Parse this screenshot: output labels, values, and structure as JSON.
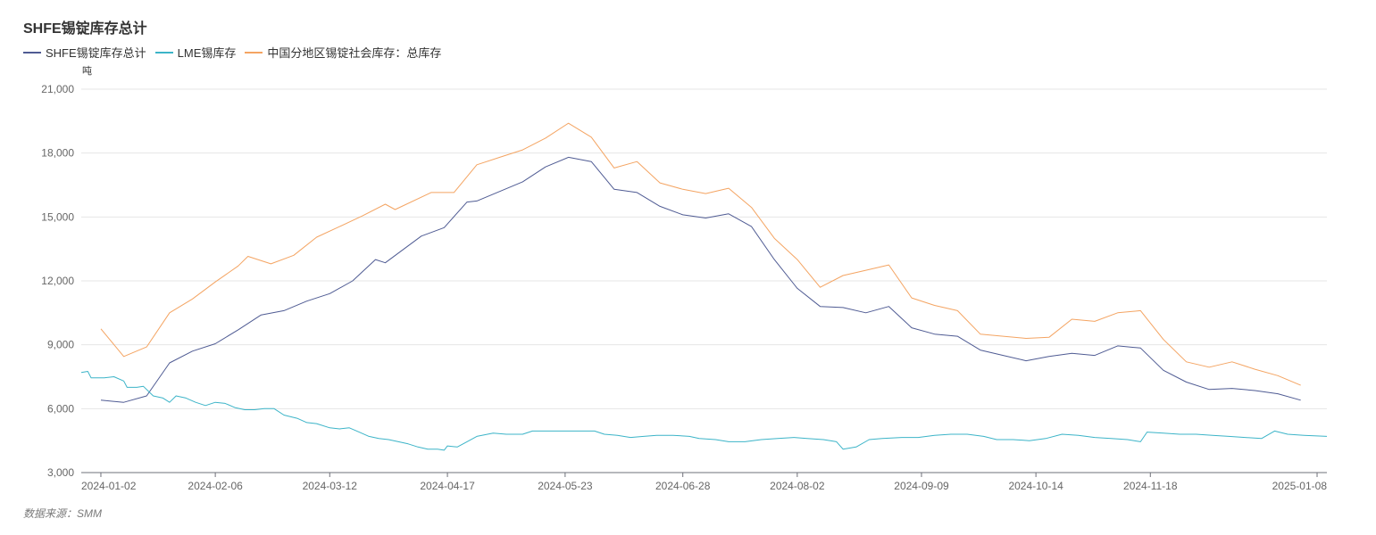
{
  "chart_data": {
    "type": "line",
    "title": "SHFE锡锭库存总计",
    "ylabel": "吨",
    "ylim": [
      3000,
      21000
    ],
    "yticks": [
      3000,
      6000,
      9000,
      12000,
      15000,
      18000,
      21000
    ],
    "ytick_labels": [
      "3,000",
      "6,000",
      "9,000",
      "12,000",
      "15,000",
      "18,000",
      "21,000"
    ],
    "xrange": [
      "2023-12-27",
      "2025-01-11"
    ],
    "xticks": [
      "2024-01-02",
      "2024-02-06",
      "2024-03-12",
      "2024-04-17",
      "2024-05-23",
      "2024-06-28",
      "2024-08-02",
      "2024-09-09",
      "2024-10-14",
      "2024-11-18",
      "2025-01-08"
    ],
    "grid": true,
    "legend_position": "top-left",
    "series": [
      {
        "name": "SHFE锡锭库存总计",
        "color": "#4f5b93",
        "points": [
          [
            "2024-01-02",
            6400
          ],
          [
            "2024-01-09",
            6300
          ],
          [
            "2024-01-16",
            6600
          ],
          [
            "2024-01-23",
            8150
          ],
          [
            "2024-01-30",
            8700
          ],
          [
            "2024-02-06",
            9050
          ],
          [
            "2024-02-13",
            9700
          ],
          [
            "2024-02-20",
            10400
          ],
          [
            "2024-02-27",
            10600
          ],
          [
            "2024-03-05",
            11050
          ],
          [
            "2024-03-12",
            11400
          ],
          [
            "2024-03-19",
            12000
          ],
          [
            "2024-03-26",
            13000
          ],
          [
            "2024-03-29",
            12850
          ],
          [
            "2024-04-09",
            14100
          ],
          [
            "2024-04-16",
            14500
          ],
          [
            "2024-04-23",
            15700
          ],
          [
            "2024-04-26",
            15750
          ],
          [
            "2024-05-10",
            16650
          ],
          [
            "2024-05-17",
            17350
          ],
          [
            "2024-05-24",
            17800
          ],
          [
            "2024-05-31",
            17600
          ],
          [
            "2024-06-07",
            16300
          ],
          [
            "2024-06-14",
            16150
          ],
          [
            "2024-06-21",
            15500
          ],
          [
            "2024-06-28",
            15100
          ],
          [
            "2024-07-05",
            14950
          ],
          [
            "2024-07-12",
            15150
          ],
          [
            "2024-07-19",
            14550
          ],
          [
            "2024-07-26",
            13000
          ],
          [
            "2024-08-02",
            11650
          ],
          [
            "2024-08-09",
            10800
          ],
          [
            "2024-08-16",
            10750
          ],
          [
            "2024-08-23",
            10500
          ],
          [
            "2024-08-30",
            10800
          ],
          [
            "2024-09-06",
            9800
          ],
          [
            "2024-09-13",
            9500
          ],
          [
            "2024-09-20",
            9400
          ],
          [
            "2024-09-27",
            8750
          ],
          [
            "2024-10-04",
            8500
          ],
          [
            "2024-10-11",
            8250
          ],
          [
            "2024-10-18",
            8450
          ],
          [
            "2024-10-25",
            8600
          ],
          [
            "2024-11-01",
            8500
          ],
          [
            "2024-11-08",
            8950
          ],
          [
            "2024-11-15",
            8850
          ],
          [
            "2024-11-22",
            7800
          ],
          [
            "2024-11-29",
            7250
          ],
          [
            "2024-12-06",
            6900
          ],
          [
            "2024-12-13",
            6950
          ],
          [
            "2024-12-20",
            6850
          ],
          [
            "2024-12-27",
            6700
          ],
          [
            "2025-01-03",
            6400
          ]
        ]
      },
      {
        "name": "LME锡库存",
        "color": "#3cb4c8",
        "points": [
          [
            "2023-12-27",
            7700
          ],
          [
            "2023-12-29",
            7750
          ],
          [
            "2023-12-30",
            7450
          ],
          [
            "2024-01-03",
            7450
          ],
          [
            "2024-01-06",
            7500
          ],
          [
            "2024-01-09",
            7300
          ],
          [
            "2024-01-10",
            7000
          ],
          [
            "2024-01-13",
            7000
          ],
          [
            "2024-01-15",
            7050
          ],
          [
            "2024-01-18",
            6600
          ],
          [
            "2024-01-21",
            6500
          ],
          [
            "2024-01-23",
            6300
          ],
          [
            "2024-01-25",
            6600
          ],
          [
            "2024-01-28",
            6500
          ],
          [
            "2024-01-31",
            6300
          ],
          [
            "2024-02-03",
            6150
          ],
          [
            "2024-02-06",
            6300
          ],
          [
            "2024-02-09",
            6250
          ],
          [
            "2024-02-12",
            6050
          ],
          [
            "2024-02-15",
            5950
          ],
          [
            "2024-02-18",
            5950
          ],
          [
            "2024-02-21",
            6000
          ],
          [
            "2024-02-24",
            6000
          ],
          [
            "2024-02-27",
            5700
          ],
          [
            "2024-03-02",
            5550
          ],
          [
            "2024-03-05",
            5350
          ],
          [
            "2024-03-08",
            5300
          ],
          [
            "2024-03-12",
            5100
          ],
          [
            "2024-03-15",
            5050
          ],
          [
            "2024-03-18",
            5100
          ],
          [
            "2024-03-21",
            4900
          ],
          [
            "2024-03-24",
            4700
          ],
          [
            "2024-03-27",
            4600
          ],
          [
            "2024-03-30",
            4550
          ],
          [
            "2024-04-02",
            4450
          ],
          [
            "2024-04-05",
            4350
          ],
          [
            "2024-04-08",
            4200
          ],
          [
            "2024-04-11",
            4100
          ],
          [
            "2024-04-14",
            4100
          ],
          [
            "2024-04-16",
            4050
          ],
          [
            "2024-04-17",
            4250
          ],
          [
            "2024-04-20",
            4200
          ],
          [
            "2024-04-23",
            4450
          ],
          [
            "2024-04-26",
            4700
          ],
          [
            "2024-05-01",
            4850
          ],
          [
            "2024-05-05",
            4800
          ],
          [
            "2024-05-10",
            4800
          ],
          [
            "2024-05-13",
            4950
          ],
          [
            "2024-05-18",
            4950
          ],
          [
            "2024-05-25",
            4950
          ],
          [
            "2024-06-01",
            4950
          ],
          [
            "2024-06-04",
            4800
          ],
          [
            "2024-06-08",
            4750
          ],
          [
            "2024-06-12",
            4650
          ],
          [
            "2024-06-16",
            4700
          ],
          [
            "2024-06-20",
            4750
          ],
          [
            "2024-06-25",
            4750
          ],
          [
            "2024-06-30",
            4700
          ],
          [
            "2024-07-03",
            4600
          ],
          [
            "2024-07-08",
            4550
          ],
          [
            "2024-07-12",
            4450
          ],
          [
            "2024-07-17",
            4450
          ],
          [
            "2024-07-22",
            4550
          ],
          [
            "2024-07-27",
            4600
          ],
          [
            "2024-08-01",
            4650
          ],
          [
            "2024-08-05",
            4600
          ],
          [
            "2024-08-10",
            4550
          ],
          [
            "2024-08-14",
            4450
          ],
          [
            "2024-08-16",
            4100
          ],
          [
            "2024-08-20",
            4200
          ],
          [
            "2024-08-24",
            4550
          ],
          [
            "2024-08-28",
            4600
          ],
          [
            "2024-09-03",
            4650
          ],
          [
            "2024-09-08",
            4650
          ],
          [
            "2024-09-13",
            4750
          ],
          [
            "2024-09-18",
            4800
          ],
          [
            "2024-09-23",
            4800
          ],
          [
            "2024-09-28",
            4700
          ],
          [
            "2024-10-02",
            4550
          ],
          [
            "2024-10-07",
            4550
          ],
          [
            "2024-10-12",
            4500
          ],
          [
            "2024-10-17",
            4600
          ],
          [
            "2024-10-22",
            4800
          ],
          [
            "2024-10-27",
            4750
          ],
          [
            "2024-11-01",
            4650
          ],
          [
            "2024-11-06",
            4600
          ],
          [
            "2024-11-11",
            4550
          ],
          [
            "2024-11-15",
            4450
          ],
          [
            "2024-11-17",
            4900
          ],
          [
            "2024-11-22",
            4850
          ],
          [
            "2024-11-27",
            4800
          ],
          [
            "2024-12-02",
            4800
          ],
          [
            "2024-12-07",
            4750
          ],
          [
            "2024-12-12",
            4700
          ],
          [
            "2024-12-17",
            4650
          ],
          [
            "2024-12-22",
            4600
          ],
          [
            "2024-12-26",
            4950
          ],
          [
            "2024-12-30",
            4800
          ],
          [
            "2025-01-04",
            4750
          ],
          [
            "2025-01-11",
            4700
          ]
        ]
      },
      {
        "name": "中国分地区锡锭社会库存：总库存",
        "color": "#f4a462",
        "points": [
          [
            "2024-01-02",
            9750
          ],
          [
            "2024-01-09",
            8450
          ],
          [
            "2024-01-16",
            8900
          ],
          [
            "2024-01-23",
            10500
          ],
          [
            "2024-01-30",
            11150
          ],
          [
            "2024-02-06",
            11950
          ],
          [
            "2024-02-13",
            12700
          ],
          [
            "2024-02-16",
            13150
          ],
          [
            "2024-02-23",
            12800
          ],
          [
            "2024-03-01",
            13200
          ],
          [
            "2024-03-08",
            14050
          ],
          [
            "2024-03-15",
            14550
          ],
          [
            "2024-03-22",
            15050
          ],
          [
            "2024-03-29",
            15600
          ],
          [
            "2024-04-01",
            15350
          ],
          [
            "2024-04-12",
            16150
          ],
          [
            "2024-04-19",
            16150
          ],
          [
            "2024-04-26",
            17450
          ],
          [
            "2024-05-03",
            17800
          ],
          [
            "2024-05-10",
            18150
          ],
          [
            "2024-05-17",
            18700
          ],
          [
            "2024-05-24",
            19400
          ],
          [
            "2024-05-31",
            18750
          ],
          [
            "2024-06-07",
            17300
          ],
          [
            "2024-06-14",
            17600
          ],
          [
            "2024-06-21",
            16600
          ],
          [
            "2024-06-28",
            16300
          ],
          [
            "2024-07-05",
            16100
          ],
          [
            "2024-07-12",
            16350
          ],
          [
            "2024-07-19",
            15450
          ],
          [
            "2024-07-26",
            14000
          ],
          [
            "2024-08-02",
            13000
          ],
          [
            "2024-08-09",
            11700
          ],
          [
            "2024-08-16",
            12250
          ],
          [
            "2024-08-23",
            12500
          ],
          [
            "2024-08-30",
            12750
          ],
          [
            "2024-09-06",
            11200
          ],
          [
            "2024-09-13",
            10850
          ],
          [
            "2024-09-20",
            10600
          ],
          [
            "2024-09-27",
            9500
          ],
          [
            "2024-10-04",
            9400
          ],
          [
            "2024-10-11",
            9300
          ],
          [
            "2024-10-18",
            9350
          ],
          [
            "2024-10-25",
            10200
          ],
          [
            "2024-11-01",
            10100
          ],
          [
            "2024-11-08",
            10500
          ],
          [
            "2024-11-15",
            10600
          ],
          [
            "2024-11-22",
            9250
          ],
          [
            "2024-11-29",
            8200
          ],
          [
            "2024-12-06",
            7950
          ],
          [
            "2024-12-13",
            8200
          ],
          [
            "2024-12-20",
            7850
          ],
          [
            "2024-12-27",
            7550
          ],
          [
            "2025-01-03",
            7100
          ]
        ]
      }
    ]
  },
  "legend": [
    {
      "label": "SHFE锡锭库存总计",
      "color": "#4f5b93"
    },
    {
      "label": "LME锡库存",
      "color": "#3cb4c8"
    },
    {
      "label": "中国分地区锡锭社会库存：总库存",
      "color": "#f4a462"
    }
  ],
  "source_note": "数据来源：SMM"
}
